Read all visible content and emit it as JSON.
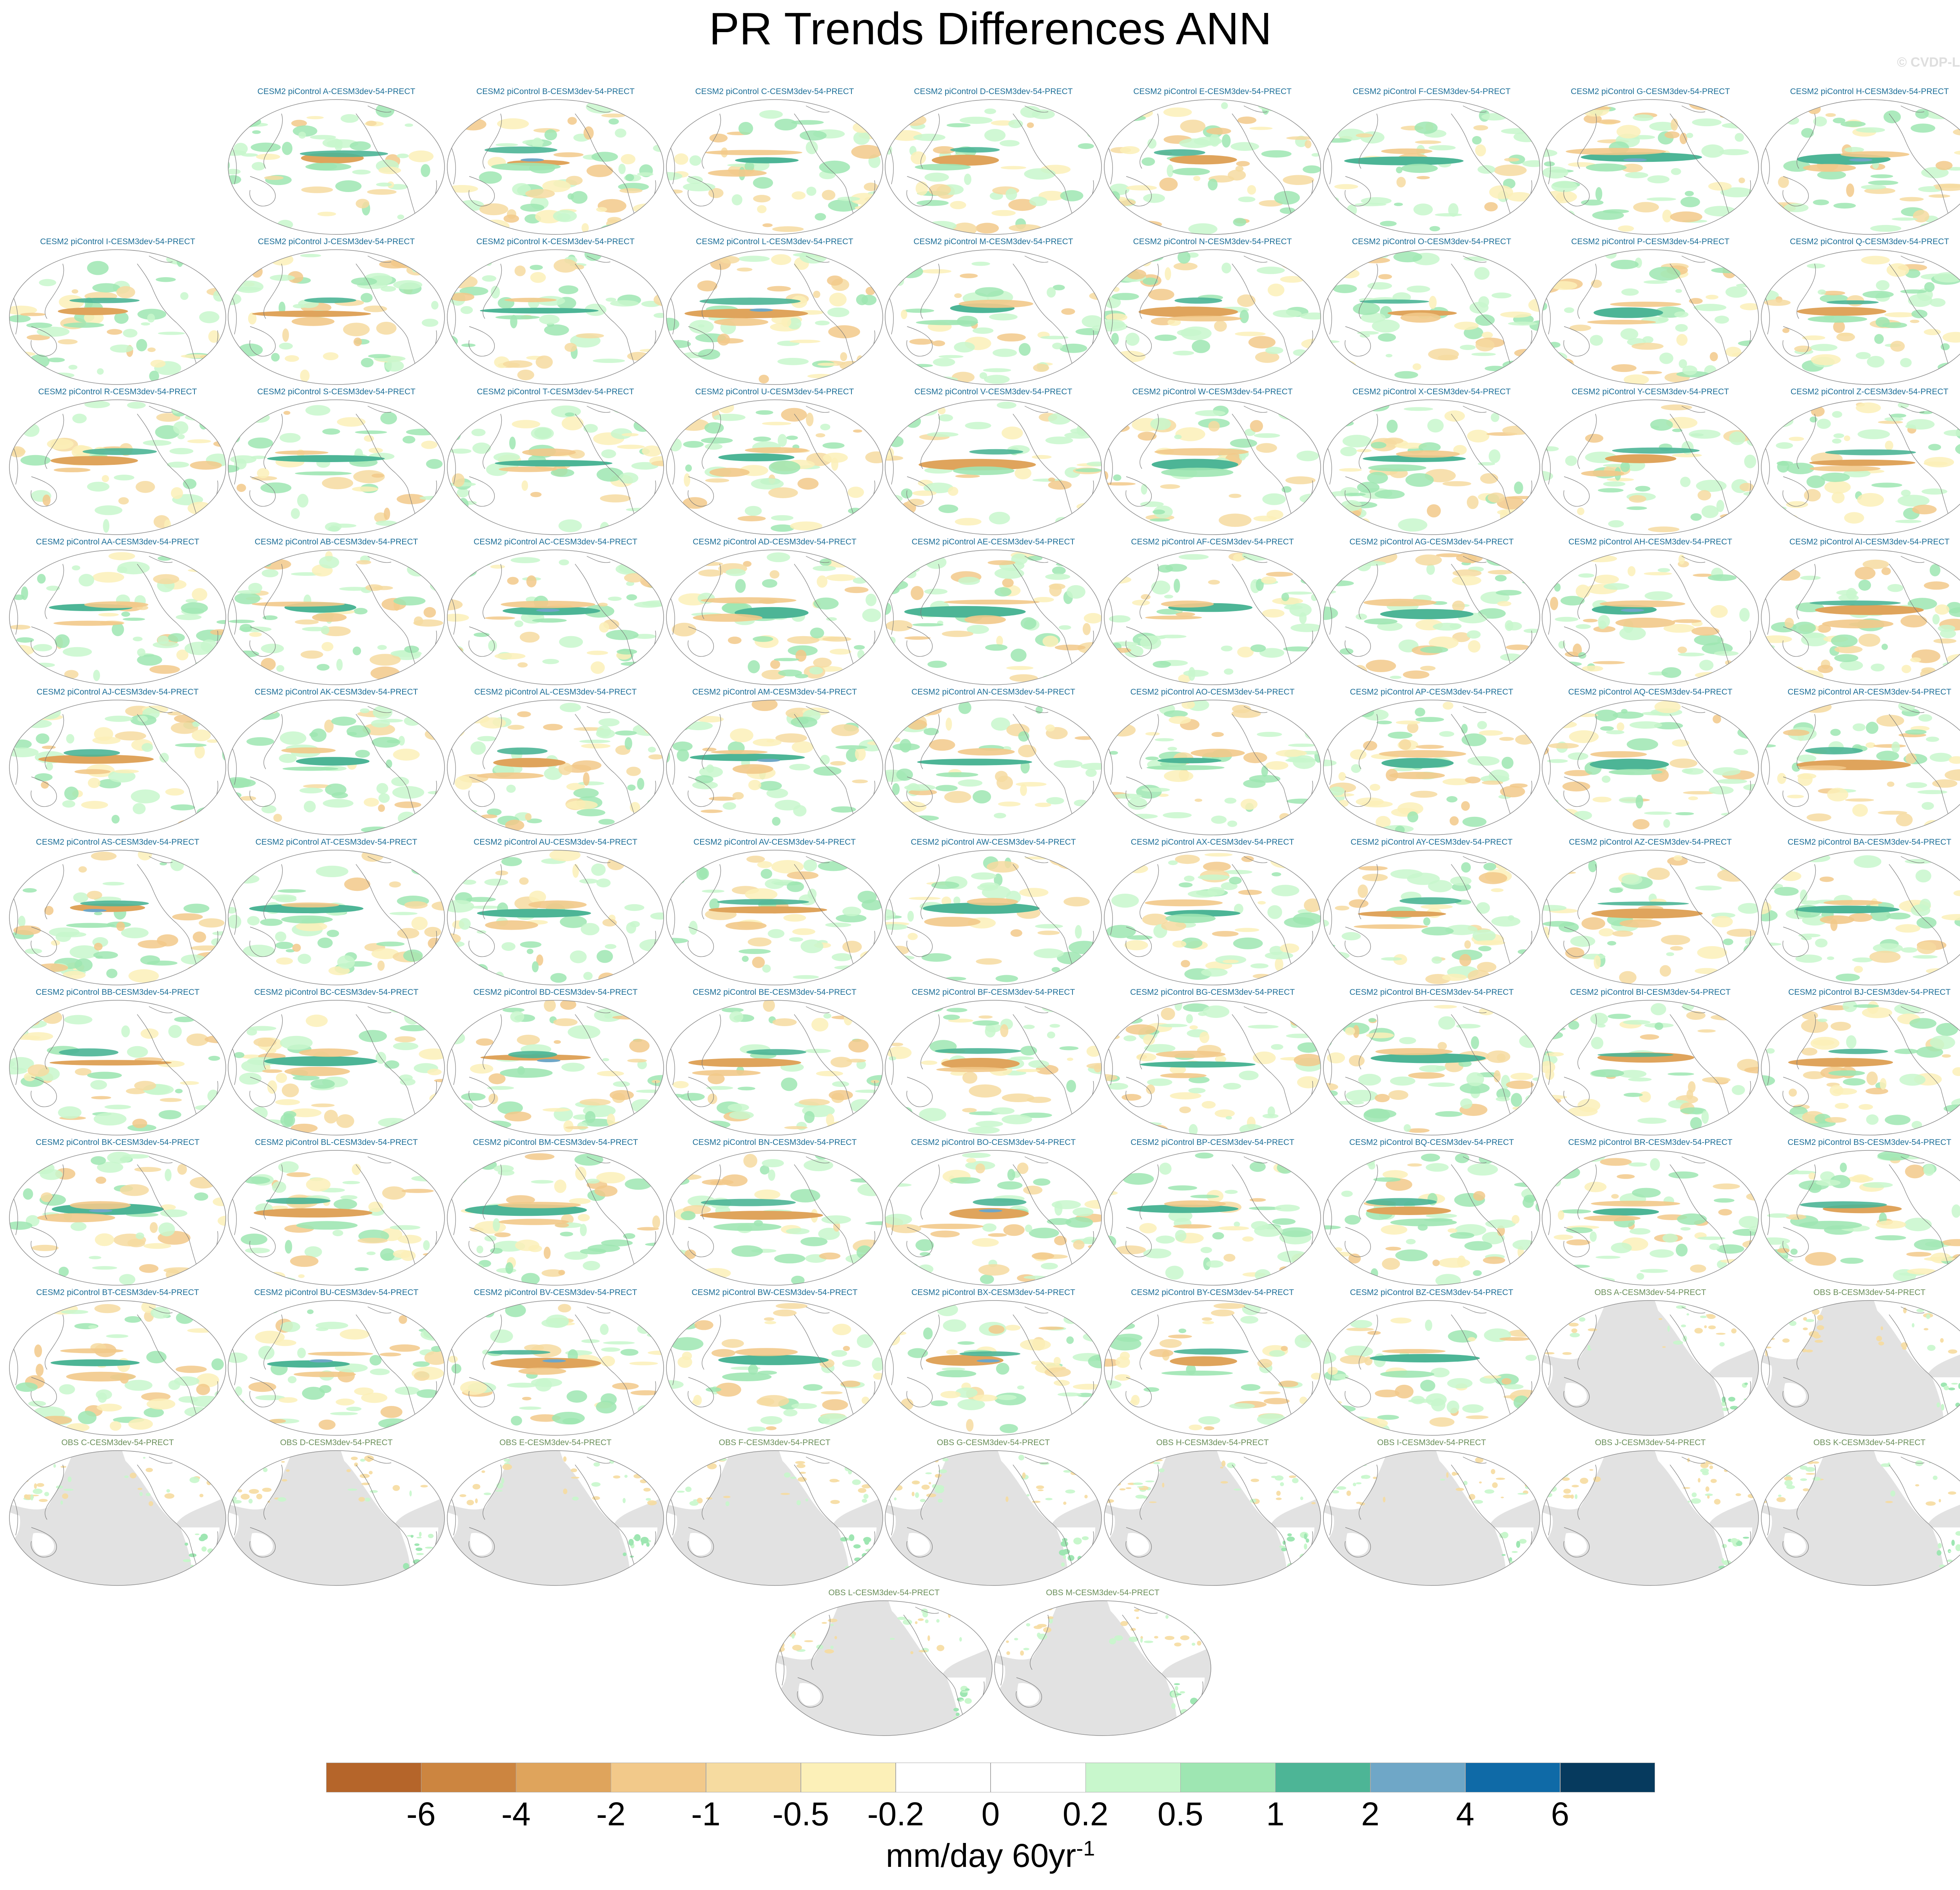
{
  "title": "PR Trends Differences ANN",
  "copyright": "© CVDP-LE",
  "colors": {
    "model_label": "#1d6f98",
    "obs_label": "#6a8f5a",
    "land_mask": "#e2e2e2",
    "coastline": "#7a7a7a"
  },
  "chart_data": {
    "type": "heatmap",
    "projection": "Robinson (Pacific-centered)",
    "units_label": "mm/day 60yr",
    "units_exponent": "-1",
    "colorbar": {
      "levels": [
        "-6",
        "-4",
        "-2",
        "-1",
        "-0.5",
        "-0.2",
        "0",
        "0.2",
        "0.5",
        "1",
        "2",
        "4",
        "6"
      ],
      "colors": [
        "#b5652a",
        "#cc8540",
        "#dfa45c",
        "#f2c98a",
        "#f6dba0",
        "#fcf0b8",
        "#ffffff",
        "#ffffff",
        "#c8f7cc",
        "#9ee6b2",
        "#4db596",
        "#6fa7c7",
        "#0f6aa7",
        "#063a5e"
      ]
    },
    "panels": [
      "CESM2 piControl A-CESM3dev-54-PRECT",
      "CESM2 piControl B-CESM3dev-54-PRECT",
      "CESM2 piControl C-CESM3dev-54-PRECT",
      "CESM2 piControl D-CESM3dev-54-PRECT",
      "CESM2 piControl E-CESM3dev-54-PRECT",
      "CESM2 piControl F-CESM3dev-54-PRECT",
      "CESM2 piControl G-CESM3dev-54-PRECT",
      "CESM2 piControl H-CESM3dev-54-PRECT",
      "CESM2 piControl I-CESM3dev-54-PRECT",
      "CESM2 piControl J-CESM3dev-54-PRECT",
      "CESM2 piControl K-CESM3dev-54-PRECT",
      "CESM2 piControl L-CESM3dev-54-PRECT",
      "CESM2 piControl M-CESM3dev-54-PRECT",
      "CESM2 piControl N-CESM3dev-54-PRECT",
      "CESM2 piControl O-CESM3dev-54-PRECT",
      "CESM2 piControl P-CESM3dev-54-PRECT",
      "CESM2 piControl Q-CESM3dev-54-PRECT",
      "CESM2 piControl R-CESM3dev-54-PRECT",
      "CESM2 piControl S-CESM3dev-54-PRECT",
      "CESM2 piControl T-CESM3dev-54-PRECT",
      "CESM2 piControl U-CESM3dev-54-PRECT",
      "CESM2 piControl V-CESM3dev-54-PRECT",
      "CESM2 piControl W-CESM3dev-54-PRECT",
      "CESM2 piControl X-CESM3dev-54-PRECT",
      "CESM2 piControl Y-CESM3dev-54-PRECT",
      "CESM2 piControl Z-CESM3dev-54-PRECT",
      "CESM2 piControl AA-CESM3dev-54-PRECT",
      "CESM2 piControl AB-CESM3dev-54-PRECT",
      "CESM2 piControl AC-CESM3dev-54-PRECT",
      "CESM2 piControl AD-CESM3dev-54-PRECT",
      "CESM2 piControl AE-CESM3dev-54-PRECT",
      "CESM2 piControl AF-CESM3dev-54-PRECT",
      "CESM2 piControl AG-CESM3dev-54-PRECT",
      "CESM2 piControl AH-CESM3dev-54-PRECT",
      "CESM2 piControl AI-CESM3dev-54-PRECT",
      "CESM2 piControl AJ-CESM3dev-54-PRECT",
      "CESM2 piControl AK-CESM3dev-54-PRECT",
      "CESM2 piControl AL-CESM3dev-54-PRECT",
      "CESM2 piControl AM-CESM3dev-54-PRECT",
      "CESM2 piControl AN-CESM3dev-54-PRECT",
      "CESM2 piControl AO-CESM3dev-54-PRECT",
      "CESM2 piControl AP-CESM3dev-54-PRECT",
      "CESM2 piControl AQ-CESM3dev-54-PRECT",
      "CESM2 piControl AR-CESM3dev-54-PRECT",
      "CESM2 piControl AS-CESM3dev-54-PRECT",
      "CESM2 piControl AT-CESM3dev-54-PRECT",
      "CESM2 piControl AU-CESM3dev-54-PRECT",
      "CESM2 piControl AV-CESM3dev-54-PRECT",
      "CESM2 piControl AW-CESM3dev-54-PRECT",
      "CESM2 piControl AX-CESM3dev-54-PRECT",
      "CESM2 piControl AY-CESM3dev-54-PRECT",
      "CESM2 piControl AZ-CESM3dev-54-PRECT",
      "CESM2 piControl BA-CESM3dev-54-PRECT",
      "CESM2 piControl BB-CESM3dev-54-PRECT",
      "CESM2 piControl BC-CESM3dev-54-PRECT",
      "CESM2 piControl BD-CESM3dev-54-PRECT",
      "CESM2 piControl BE-CESM3dev-54-PRECT",
      "CESM2 piControl BF-CESM3dev-54-PRECT",
      "CESM2 piControl BG-CESM3dev-54-PRECT",
      "CESM2 piControl BH-CESM3dev-54-PRECT",
      "CESM2 piControl BI-CESM3dev-54-PRECT",
      "CESM2 piControl BJ-CESM3dev-54-PRECT",
      "CESM2 piControl BK-CESM3dev-54-PRECT",
      "CESM2 piControl BL-CESM3dev-54-PRECT",
      "CESM2 piControl BM-CESM3dev-54-PRECT",
      "CESM2 piControl BN-CESM3dev-54-PRECT",
      "CESM2 piControl BO-CESM3dev-54-PRECT",
      "CESM2 piControl BP-CESM3dev-54-PRECT",
      "CESM2 piControl BQ-CESM3dev-54-PRECT",
      "CESM2 piControl BR-CESM3dev-54-PRECT",
      "CESM2 piControl BS-CESM3dev-54-PRECT",
      "CESM2 piControl BT-CESM3dev-54-PRECT",
      "CESM2 piControl BU-CESM3dev-54-PRECT",
      "CESM2 piControl BV-CESM3dev-54-PRECT",
      "CESM2 piControl BW-CESM3dev-54-PRECT",
      "CESM2 piControl BX-CESM3dev-54-PRECT",
      "CESM2 piControl BY-CESM3dev-54-PRECT",
      "CESM2 piControl BZ-CESM3dev-54-PRECT",
      "OBS A-CESM3dev-54-PRECT",
      "OBS B-CESM3dev-54-PRECT",
      "OBS C-CESM3dev-54-PRECT",
      "OBS D-CESM3dev-54-PRECT",
      "OBS E-CESM3dev-54-PRECT",
      "OBS F-CESM3dev-54-PRECT",
      "OBS G-CESM3dev-54-PRECT",
      "OBS H-CESM3dev-54-PRECT",
      "OBS I-CESM3dev-54-PRECT",
      "OBS J-CESM3dev-54-PRECT",
      "OBS K-CESM3dev-54-PRECT",
      "OBS L-CESM3dev-54-PRECT",
      "OBS M-CESM3dev-54-PRECT"
    ]
  }
}
